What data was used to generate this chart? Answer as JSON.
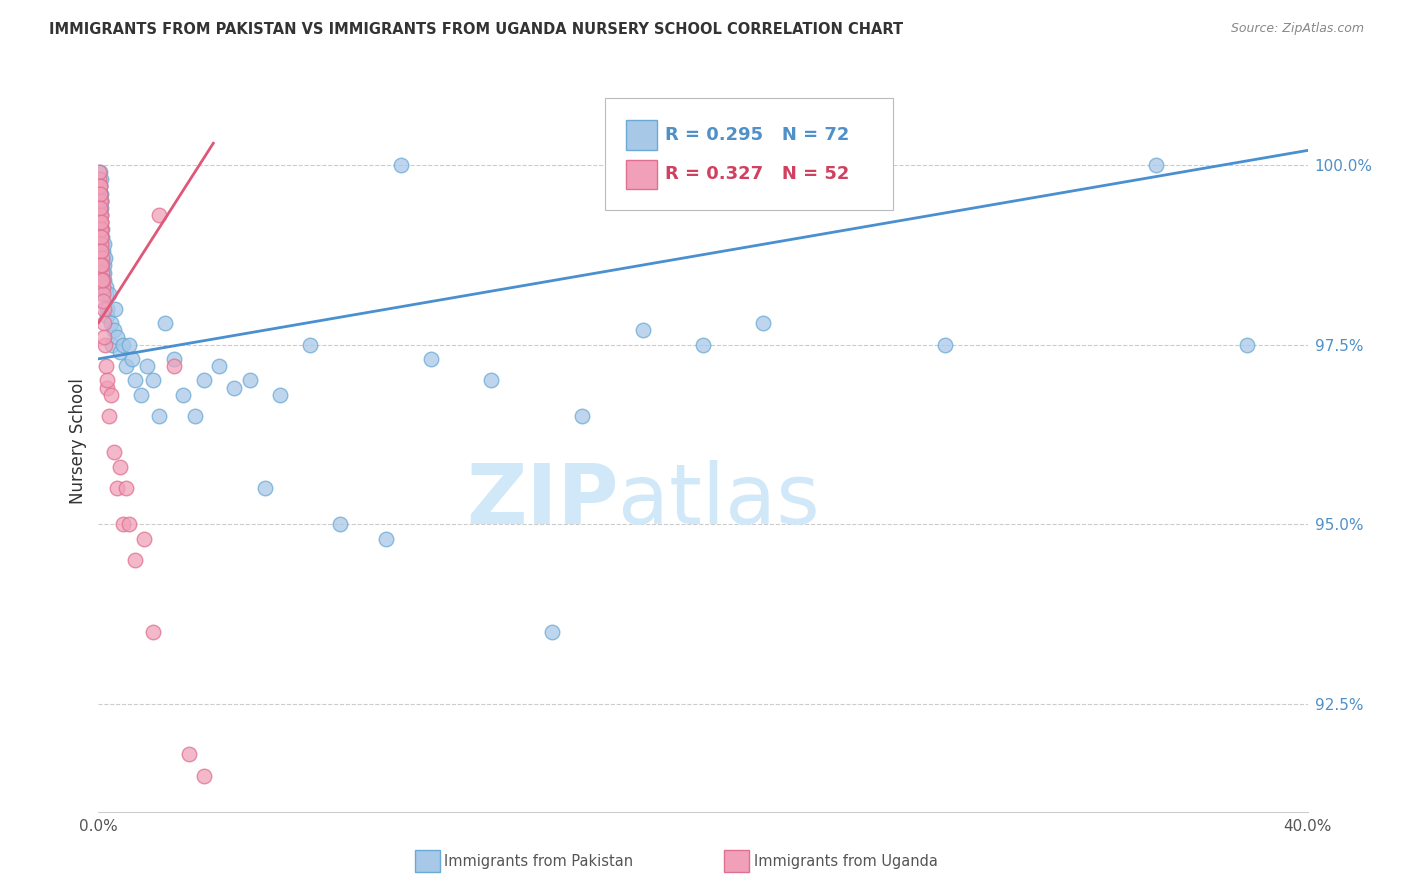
{
  "title": "IMMIGRANTS FROM PAKISTAN VS IMMIGRANTS FROM UGANDA NURSERY SCHOOL CORRELATION CHART",
  "source": "Source: ZipAtlas.com",
  "ylabel": "Nursery School",
  "yaxis_values": [
    92.5,
    95.0,
    97.5,
    100.0
  ],
  "xlim": [
    0.0,
    40.0
  ],
  "ylim": [
    91.0,
    101.3
  ],
  "legend_r_pakistan": "R = 0.295",
  "legend_n_pakistan": "N = 72",
  "legend_r_uganda": "R = 0.327",
  "legend_n_uganda": "N = 52",
  "pakistan_color": "#a8c8e8",
  "pakistan_edge_color": "#6aaad4",
  "uganda_color": "#f0a0b8",
  "uganda_edge_color": "#e07090",
  "pakistan_line_color": "#4a90d0",
  "uganda_line_color": "#e05878",
  "grid_color": "#cccccc",
  "text_color": "#333333",
  "right_axis_color": "#5090c8",
  "watermark_color": "#d0e8f8",
  "pakistan_x": [
    0.02,
    0.03,
    0.04,
    0.05,
    0.05,
    0.06,
    0.06,
    0.07,
    0.07,
    0.08,
    0.08,
    0.09,
    0.09,
    0.1,
    0.1,
    0.1,
    0.11,
    0.12,
    0.13,
    0.14,
    0.15,
    0.16,
    0.17,
    0.18,
    0.19,
    0.2,
    0.22,
    0.24,
    0.26,
    0.28,
    0.3,
    0.35,
    0.4,
    0.45,
    0.5,
    0.55,
    0.6,
    0.7,
    0.8,
    0.9,
    1.0,
    1.1,
    1.2,
    1.4,
    1.6,
    1.8,
    2.0,
    2.2,
    2.5,
    2.8,
    3.2,
    3.5,
    4.0,
    4.5,
    5.0,
    5.5,
    6.0,
    7.0,
    8.0,
    9.5,
    10.0,
    11.0,
    13.0,
    15.0,
    16.0,
    18.0,
    20.0,
    22.0,
    24.0,
    28.0,
    35.0,
    38.0
  ],
  "pakistan_y": [
    99.8,
    99.7,
    99.9,
    99.6,
    99.5,
    99.7,
    99.4,
    99.3,
    99.8,
    99.5,
    99.6,
    99.2,
    99.4,
    99.0,
    99.5,
    98.8,
    99.1,
    98.9,
    99.0,
    98.7,
    98.8,
    98.5,
    98.9,
    98.6,
    98.4,
    98.5,
    98.7,
    98.3,
    98.2,
    98.0,
    97.9,
    98.2,
    97.8,
    97.5,
    97.7,
    98.0,
    97.6,
    97.4,
    97.5,
    97.2,
    97.5,
    97.3,
    97.0,
    96.8,
    97.2,
    97.0,
    96.5,
    97.8,
    97.3,
    96.8,
    96.5,
    97.0,
    97.2,
    96.9,
    97.0,
    95.5,
    96.8,
    97.5,
    95.0,
    94.8,
    100.0,
    97.3,
    97.0,
    93.5,
    96.5,
    97.7,
    97.5,
    97.8,
    100.0,
    97.5,
    100.0,
    97.5
  ],
  "uganda_x": [
    0.02,
    0.03,
    0.04,
    0.04,
    0.05,
    0.05,
    0.06,
    0.06,
    0.07,
    0.07,
    0.08,
    0.08,
    0.09,
    0.09,
    0.1,
    0.1,
    0.11,
    0.12,
    0.13,
    0.14,
    0.15,
    0.16,
    0.18,
    0.2,
    0.22,
    0.25,
    0.28,
    0.3,
    0.35,
    0.4,
    0.5,
    0.6,
    0.7,
    0.8,
    0.9,
    1.0,
    1.2,
    1.5,
    1.8,
    2.0,
    2.5,
    3.0,
    3.5,
    0.05,
    0.06,
    0.07,
    0.08,
    0.09,
    0.1,
    0.12,
    0.15,
    0.2
  ],
  "uganda_y": [
    99.8,
    99.9,
    99.7,
    99.5,
    99.6,
    99.3,
    99.4,
    99.7,
    99.2,
    99.5,
    99.1,
    99.3,
    99.0,
    98.8,
    98.9,
    99.1,
    98.7,
    98.5,
    98.6,
    98.3,
    98.2,
    98.4,
    98.0,
    97.8,
    97.5,
    97.2,
    96.9,
    97.0,
    96.5,
    96.8,
    96.0,
    95.5,
    95.8,
    95.0,
    95.5,
    95.0,
    94.5,
    94.8,
    93.5,
    99.3,
    97.2,
    91.8,
    91.5,
    99.6,
    99.4,
    99.2,
    99.0,
    98.8,
    98.6,
    98.4,
    98.1,
    97.6
  ],
  "pakistan_line_x": [
    0.0,
    40.0
  ],
  "pakistan_line_y": [
    97.3,
    100.2
  ],
  "uganda_line_x": [
    0.0,
    3.8
  ],
  "uganda_line_y": [
    97.8,
    100.3
  ]
}
